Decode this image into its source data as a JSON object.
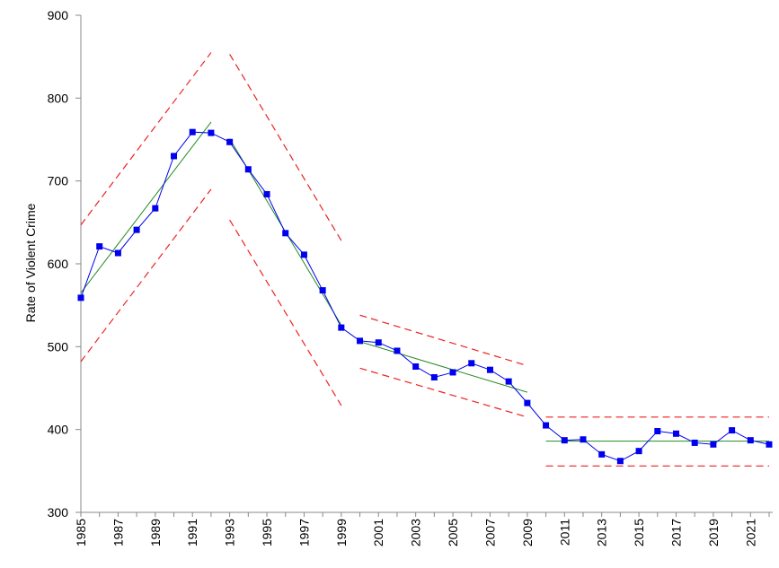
{
  "chart_data": {
    "type": "line",
    "title": "",
    "xlabel": "",
    "ylabel": "Rate of Violent Crime",
    "ylim": [
      300,
      900
    ],
    "yticks": [
      300,
      400,
      500,
      600,
      700,
      800,
      900
    ],
    "xlim": [
      1985,
      2022
    ],
    "xticks": [
      "1985",
      "1987",
      "1989",
      "1991",
      "1993",
      "1995",
      "1997",
      "1999",
      "2001",
      "2003",
      "2005",
      "2007",
      "2009",
      "2011",
      "2013",
      "2015",
      "2017",
      "2019",
      "2021"
    ],
    "grid": false,
    "legend": "none",
    "colors": {
      "data": "#0000ee",
      "trend": "#228b22",
      "limits": "#ee2020"
    },
    "series": [
      {
        "role": "data",
        "x": [
          1985,
          1986,
          1987,
          1988,
          1989,
          1990,
          1991,
          1992,
          1993,
          1994,
          1995,
          1996,
          1997,
          1998,
          1999,
          2000,
          2001,
          2002,
          2003,
          2004,
          2005,
          2006,
          2007,
          2008,
          2009,
          2010,
          2011,
          2012,
          2013,
          2014,
          2015,
          2016,
          2017,
          2018,
          2019,
          2020,
          2021,
          2022
        ],
        "y": [
          559,
          621,
          613,
          641,
          667,
          730,
          759,
          758,
          747,
          714,
          684,
          637,
          611,
          568,
          523,
          507,
          505,
          495,
          476,
          463,
          469,
          480,
          472,
          458,
          432,
          405,
          387,
          388,
          370,
          362,
          374,
          398,
          395,
          384,
          382,
          399,
          387,
          382
        ]
      }
    ],
    "segments": [
      {
        "role": "trend",
        "x": [
          1985,
          1992
        ],
        "y": [
          565,
          771
        ]
      },
      {
        "role": "upper-limit",
        "x": [
          1985,
          1992
        ],
        "y": [
          647,
          855
        ]
      },
      {
        "role": "lower-limit",
        "x": [
          1985,
          1992
        ],
        "y": [
          482,
          690
        ]
      },
      {
        "role": "trend",
        "x": [
          1993,
          1999
        ],
        "y": [
          751,
          526
        ]
      },
      {
        "role": "upper-limit",
        "x": [
          1993,
          1999
        ],
        "y": [
          853,
          628
        ]
      },
      {
        "role": "lower-limit",
        "x": [
          1993,
          1999
        ],
        "y": [
          653,
          429
        ]
      },
      {
        "role": "trend",
        "x": [
          2000,
          2009
        ],
        "y": [
          506,
          445
        ]
      },
      {
        "role": "upper-limit",
        "x": [
          2000,
          2009
        ],
        "y": [
          538,
          477
        ]
      },
      {
        "role": "lower-limit",
        "x": [
          2000,
          2009
        ],
        "y": [
          474,
          415
        ]
      },
      {
        "role": "trend",
        "x": [
          2010,
          2022
        ],
        "y": [
          386,
          386
        ]
      },
      {
        "role": "upper-limit",
        "x": [
          2010,
          2022
        ],
        "y": [
          415,
          415
        ]
      },
      {
        "role": "lower-limit",
        "x": [
          2010,
          2022
        ],
        "y": [
          356,
          356
        ]
      }
    ]
  }
}
